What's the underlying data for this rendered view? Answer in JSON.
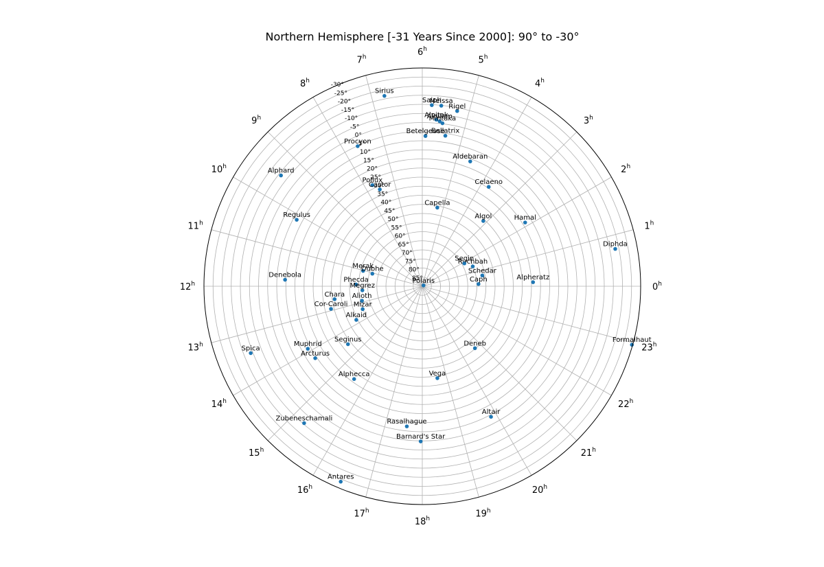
{
  "chart_data": {
    "type": "scatter",
    "projection": "polar",
    "title": "Northern Hemisphere [-31 Years Since 2000]: 90° to -30°",
    "angular_axis": {
      "quantity": "right ascension",
      "unit": "h",
      "ticks": [
        0,
        1,
        2,
        3,
        4,
        5,
        6,
        7,
        8,
        9,
        10,
        11,
        12,
        13,
        14,
        15,
        16,
        17,
        18,
        19,
        20,
        21,
        22,
        23
      ],
      "direction": "counterclockwise",
      "zero_at": "east"
    },
    "radial_axis": {
      "quantity": "declination",
      "center": 90,
      "edge": -30,
      "ticks": [
        -30,
        -25,
        -20,
        -15,
        -10,
        -5,
        0,
        5,
        10,
        15,
        20,
        25,
        30,
        35,
        40,
        45,
        50,
        55,
        60,
        65,
        70,
        75,
        80,
        85,
        90
      ],
      "tick_labels": [
        "-30°",
        "-25°",
        "-20°",
        "-15°",
        "-10°",
        "-5°",
        "0°",
        "5°",
        "10°",
        "15°",
        "20°",
        "25°",
        "30°",
        "35°",
        "40°",
        "45°",
        "50°",
        "55°",
        "60°",
        "65°",
        "70°",
        "75°",
        "80°",
        "85°",
        "90°"
      ],
      "label_angle_hours": 7.5
    },
    "grid": true,
    "marker_color": "#1f77b4",
    "points": [
      {
        "name": "Polaris",
        "ra": 2.3,
        "dec": 89.2
      },
      {
        "name": "Sirius",
        "ra": 6.75,
        "dec": -16.7
      },
      {
        "name": "Saiph",
        "ra": 5.8,
        "dec": -9.7
      },
      {
        "name": "Meissa",
        "ra": 5.6,
        "dec": -9.8
      },
      {
        "name": "Rigel",
        "ra": 5.25,
        "dec": -8.2
      },
      {
        "name": "Alnitak",
        "ra": 5.68,
        "dec": -1.9
      },
      {
        "name": "Alnilam",
        "ra": 5.6,
        "dec": -1.2
      },
      {
        "name": "Mintaka",
        "ra": 5.53,
        "dec": -0.3
      },
      {
        "name": "Betelgeuse",
        "ra": 5.92,
        "dec": 7.4
      },
      {
        "name": "Bellatrix",
        "ra": 5.42,
        "dec": 6.3
      },
      {
        "name": "Aldebaran",
        "ra": 4.6,
        "dec": 16.5
      },
      {
        "name": "Celaeno",
        "ra": 3.75,
        "dec": 24.3
      },
      {
        "name": "Procyon",
        "ra": 7.65,
        "dec": 5.2
      },
      {
        "name": "Pollux",
        "ra": 7.75,
        "dec": 28.0
      },
      {
        "name": "Castor",
        "ra": 7.58,
        "dec": 31.9
      },
      {
        "name": "Capella",
        "ra": 5.28,
        "dec": 46.0
      },
      {
        "name": "Algol",
        "ra": 3.13,
        "dec": 40.9
      },
      {
        "name": "Hamal",
        "ra": 2.12,
        "dec": 23.5
      },
      {
        "name": "Diphda",
        "ra": 0.73,
        "dec": -18.0
      },
      {
        "name": "Alpheratz",
        "ra": 0.14,
        "dec": 29.1
      },
      {
        "name": "Caph",
        "ra": 0.15,
        "dec": 59.1
      },
      {
        "name": "Schedar",
        "ra": 0.68,
        "dec": 56.5
      },
      {
        "name": "Ruchbah",
        "ra": 1.43,
        "dec": 60.2
      },
      {
        "name": "Segin",
        "ra": 1.9,
        "dec": 63.7
      },
      {
        "name": "Alphard",
        "ra": 9.46,
        "dec": -8.7
      },
      {
        "name": "Regulus",
        "ra": 10.14,
        "dec": 11.9
      },
      {
        "name": "Denebola",
        "ra": 11.82,
        "dec": 14.5
      },
      {
        "name": "Merak",
        "ra": 11.03,
        "dec": 56.4
      },
      {
        "name": "Dubhe",
        "ra": 11.06,
        "dec": 61.7
      },
      {
        "name": "Phecda",
        "ra": 11.9,
        "dec": 53.6
      },
      {
        "name": "Megrez",
        "ra": 12.26,
        "dec": 57.0
      },
      {
        "name": "Alioth",
        "ra": 12.9,
        "dec": 55.9
      },
      {
        "name": "Mizar",
        "ra": 13.4,
        "dec": 54.9
      },
      {
        "name": "Alkaid",
        "ra": 13.8,
        "dec": 49.3
      },
      {
        "name": "Chara",
        "ra": 12.56,
        "dec": 41.3
      },
      {
        "name": "Cor-Caroli",
        "ra": 12.93,
        "dec": 38.3
      },
      {
        "name": "Seginus",
        "ra": 14.53,
        "dec": 38.2
      },
      {
        "name": "Muphrid",
        "ra": 13.91,
        "dec": 18.3
      },
      {
        "name": "Arcturus",
        "ra": 14.26,
        "dec": 19.1
      },
      {
        "name": "Alphecca",
        "ra": 15.58,
        "dec": 26.7
      },
      {
        "name": "Spica",
        "ra": 13.42,
        "dec": -11.2
      },
      {
        "name": "Zubeneschamali",
        "ra": 15.28,
        "dec": -9.4
      },
      {
        "name": "Antares",
        "ra": 16.49,
        "dec": -26.4
      },
      {
        "name": "Rasalhague",
        "ra": 17.58,
        "dec": 12.5
      },
      {
        "name": "Barnard's Star",
        "ra": 17.96,
        "dec": 4.7
      },
      {
        "name": "Vega",
        "ra": 18.62,
        "dec": 38.8
      },
      {
        "name": "Altair",
        "ra": 19.85,
        "dec": 8.9
      },
      {
        "name": "Deneb",
        "ra": 20.69,
        "dec": 45.3
      },
      {
        "name": "Formalhaut",
        "ra": 22.96,
        "dec": -29.6
      }
    ]
  }
}
